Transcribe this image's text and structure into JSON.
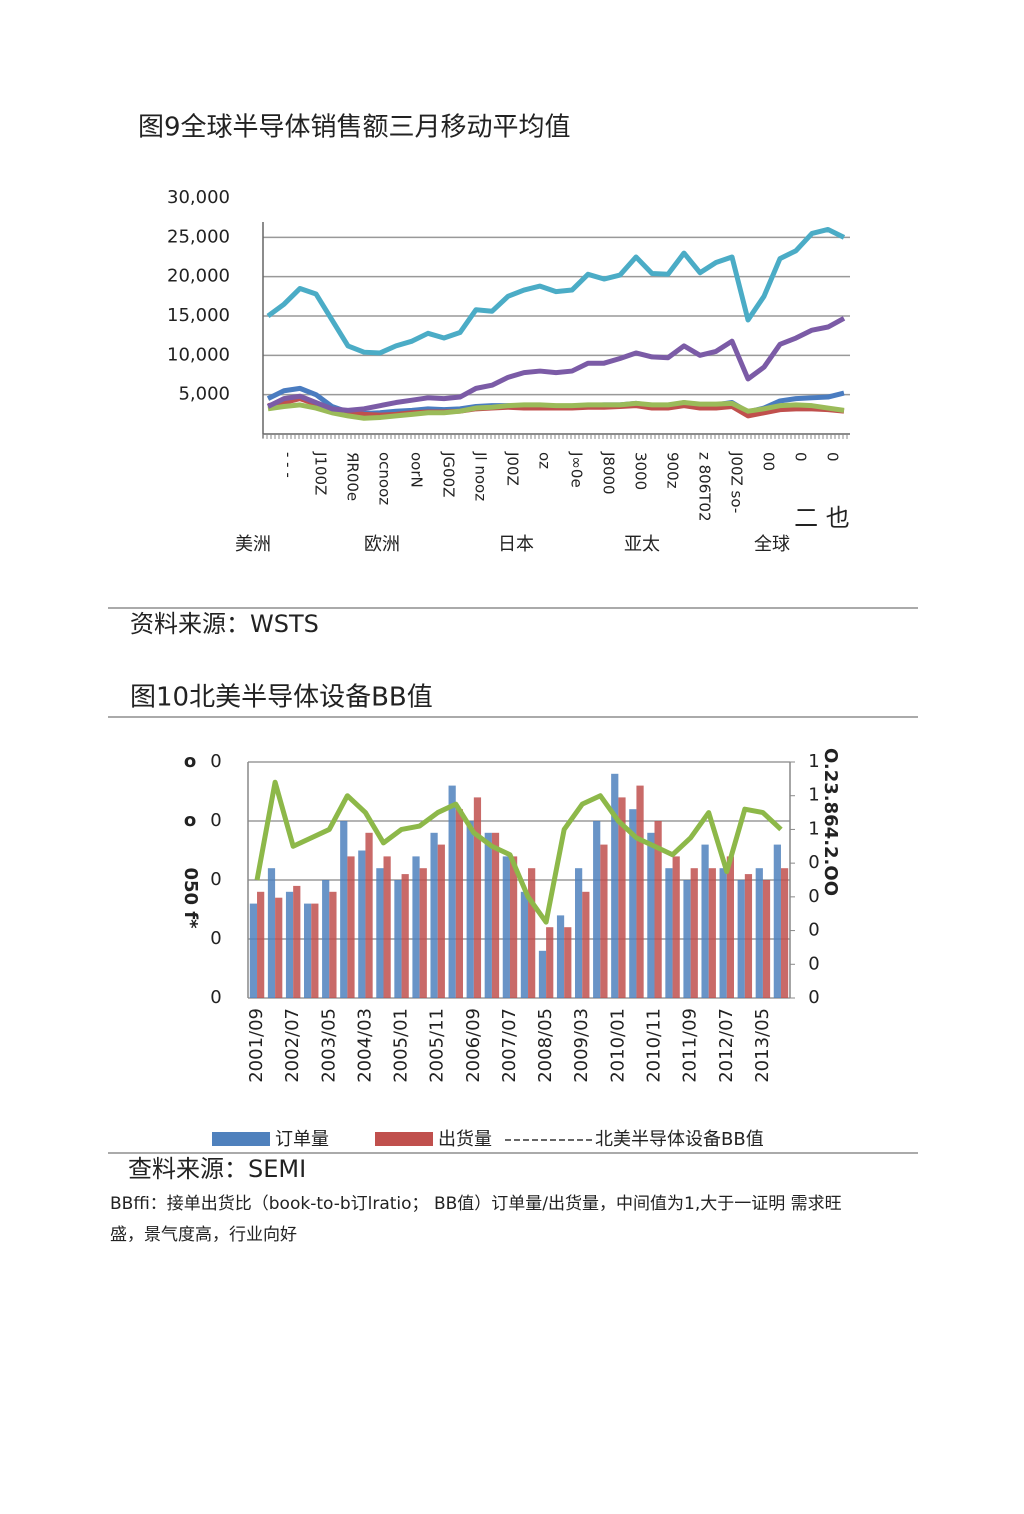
{
  "figure9_title": "图9全球半导体销售额三月移动平均值",
  "source1": "资料来源：WSTS",
  "figure10_title": "图10北美半导体设备BB值",
  "source2": "查料来源：SEMI",
  "note": [
    "BBffi：接单出货比（book-to-b订lratio； BB值）订单量/出货量，中间值为1,大于一证明 需求旺",
    "盛，景气度高，行业向好"
  ],
  "chart_data": [
    {
      "type": "line",
      "categories": [
        "- - -",
        null,
        "J100Z",
        null,
        "ЯR00e",
        null,
        "ocnooz",
        null,
        "oorN",
        null,
        "JG00Z",
        null,
        "Jl nooz",
        null,
        "J00Z",
        null,
        "oz",
        null,
        "J∞0e",
        null,
        "J8000",
        null,
        "3000",
        null,
        "900z",
        null,
        "z 806T02",
        null,
        "J00Z so-",
        null,
        "00",
        null,
        "0",
        null,
        "0",
        null,
        null
      ],
      "annotations": [
        "二 也"
      ],
      "ylim": [
        0,
        30000
      ],
      "yticks": [
        {
          "value": 5000,
          "label": "5,000"
        },
        {
          "value": 10000,
          "label": "10,000"
        },
        {
          "value": 15000,
          "label": "15,000"
        },
        {
          "value": 20000,
          "label": "20,000"
        },
        {
          "value": 25000,
          "label": "25,000"
        },
        {
          "value": 30000,
          "label": "30,000"
        }
      ],
      "grid": true,
      "series": [
        {
          "name": "美洲",
          "color": "#4a7cc0",
          "values": [
            4500,
            5500,
            5800,
            5000,
            3500,
            2800,
            2600,
            2700,
            2900,
            3000,
            3200,
            3100,
            3200,
            3500,
            3600,
            3600,
            3500,
            3500,
            3400,
            3500,
            3600,
            3700,
            3700,
            3900,
            3600,
            3600,
            4000,
            3600,
            3700,
            4000,
            2800,
            3300,
            4200,
            4500,
            4600,
            4700,
            5200
          ]
        },
        {
          "name": "欧洲",
          "color": "#c0504d",
          "values": [
            3600,
            4000,
            4500,
            3800,
            3000,
            2700,
            2500,
            2400,
            2500,
            2700,
            2800,
            2800,
            2900,
            3200,
            3300,
            3400,
            3300,
            3300,
            3300,
            3300,
            3400,
            3400,
            3500,
            3600,
            3300,
            3300,
            3600,
            3300,
            3300,
            3500,
            2300,
            2700,
            3100,
            3200,
            3200,
            3100,
            2900
          ]
        },
        {
          "name": "日本",
          "color": "#9bbb59",
          "values": [
            3200,
            3500,
            3700,
            3300,
            2700,
            2300,
            2000,
            2100,
            2300,
            2500,
            2700,
            2700,
            2900,
            3300,
            3400,
            3600,
            3700,
            3700,
            3600,
            3600,
            3700,
            3700,
            3700,
            3900,
            3700,
            3700,
            4000,
            3800,
            3800,
            3900,
            2900,
            3200,
            3600,
            3700,
            3600,
            3300,
            3000
          ]
        },
        {
          "name": "亚太",
          "color": "#7b5ba6",
          "values": [
            3500,
            4500,
            4800,
            4000,
            3200,
            3000,
            3200,
            3600,
            4000,
            4300,
            4600,
            4500,
            4700,
            5800,
            6200,
            7200,
            7800,
            8000,
            7800,
            8000,
            9000,
            9000,
            9600,
            10300,
            9800,
            9700,
            11200,
            10000,
            10500,
            11800,
            7000,
            8500,
            11400,
            12200,
            13200,
            13600,
            14700
          ]
        },
        {
          "name": "全球",
          "color": "#4bacc6",
          "values": [
            15000,
            16500,
            18500,
            17800,
            14500,
            11200,
            10400,
            10300,
            11200,
            11800,
            12800,
            12200,
            12900,
            15800,
            15600,
            17500,
            18300,
            18800,
            18100,
            18300,
            20300,
            19700,
            20200,
            22500,
            20400,
            20300,
            23000,
            20500,
            21800,
            22500,
            14500,
            17500,
            22300,
            23300,
            25500,
            26000,
            25000
          ]
        }
      ]
    },
    {
      "type": "bar",
      "categories": [
        "2001/09",
        null,
        "2002/07",
        null,
        "2003/05",
        null,
        "2004/03",
        null,
        "2005/01",
        null,
        "2005/11",
        null,
        "2006/09",
        null,
        "2007/07",
        null,
        "2008/05",
        null,
        "2009/03",
        null,
        "2010/01",
        null,
        "2010/11",
        null,
        "2011/09",
        null,
        "2012/07",
        null,
        "2013/05",
        null
      ],
      "annotations": [
        "o",
        "o",
        "050 f*",
        "O.23.864.2.OO"
      ],
      "ylim": [
        0,
        2000
      ],
      "yticks": [
        {
          "value": 0,
          "label": "0"
        },
        {
          "value": 500,
          "label": "0"
        },
        {
          "value": 1000,
          "label": "0"
        },
        {
          "value": 1500,
          "label": "0"
        },
        {
          "value": 2000,
          "label": "0"
        }
      ],
      "y2lim": [
        0,
        1.4
      ],
      "y2ticks": [
        {
          "value": 0,
          "label": "0"
        },
        {
          "value": 0.2,
          "label": "0"
        },
        {
          "value": 0.4,
          "label": "0"
        },
        {
          "value": 0.6,
          "label": "0"
        },
        {
          "value": 0.8,
          "label": "0"
        },
        {
          "value": 1.0,
          "label": "1"
        },
        {
          "value": 1.2,
          "label": "1"
        },
        {
          "value": 1.4,
          "label": "1"
        }
      ],
      "grid": true,
      "series": [
        {
          "name": "订单量",
          "color": "#4f81bd",
          "values": [
            800,
            1100,
            900,
            800,
            1000,
            1500,
            1250,
            1100,
            1000,
            1200,
            1400,
            1800,
            1500,
            1400,
            1200,
            900,
            400,
            700,
            1100,
            1500,
            1900,
            1600,
            1400,
            1100,
            1000,
            1300,
            1100,
            1000,
            1100,
            1300
          ]
        },
        {
          "name": "出货量",
          "color": "#c0504d",
          "values": [
            900,
            850,
            950,
            800,
            900,
            1200,
            1400,
            1200,
            1050,
            1100,
            1300,
            1600,
            1700,
            1400,
            1200,
            1100,
            600,
            600,
            900,
            1300,
            1700,
            1800,
            1500,
            1200,
            1100,
            1100,
            1200,
            1050,
            1000,
            1100
          ]
        },
        {
          "name": "北美半导体设备BB值",
          "color": "#8db849",
          "type": "line",
          "axis": "y2",
          "values": [
            0.7,
            1.28,
            0.9,
            0.95,
            1.0,
            1.2,
            1.1,
            0.92,
            1.0,
            1.02,
            1.1,
            1.15,
            0.98,
            0.9,
            0.85,
            0.6,
            0.45,
            1.0,
            1.15,
            1.2,
            1.05,
            0.95,
            0.9,
            0.85,
            0.95,
            1.1,
            0.75,
            1.12,
            1.1,
            1.0
          ]
        }
      ]
    }
  ]
}
